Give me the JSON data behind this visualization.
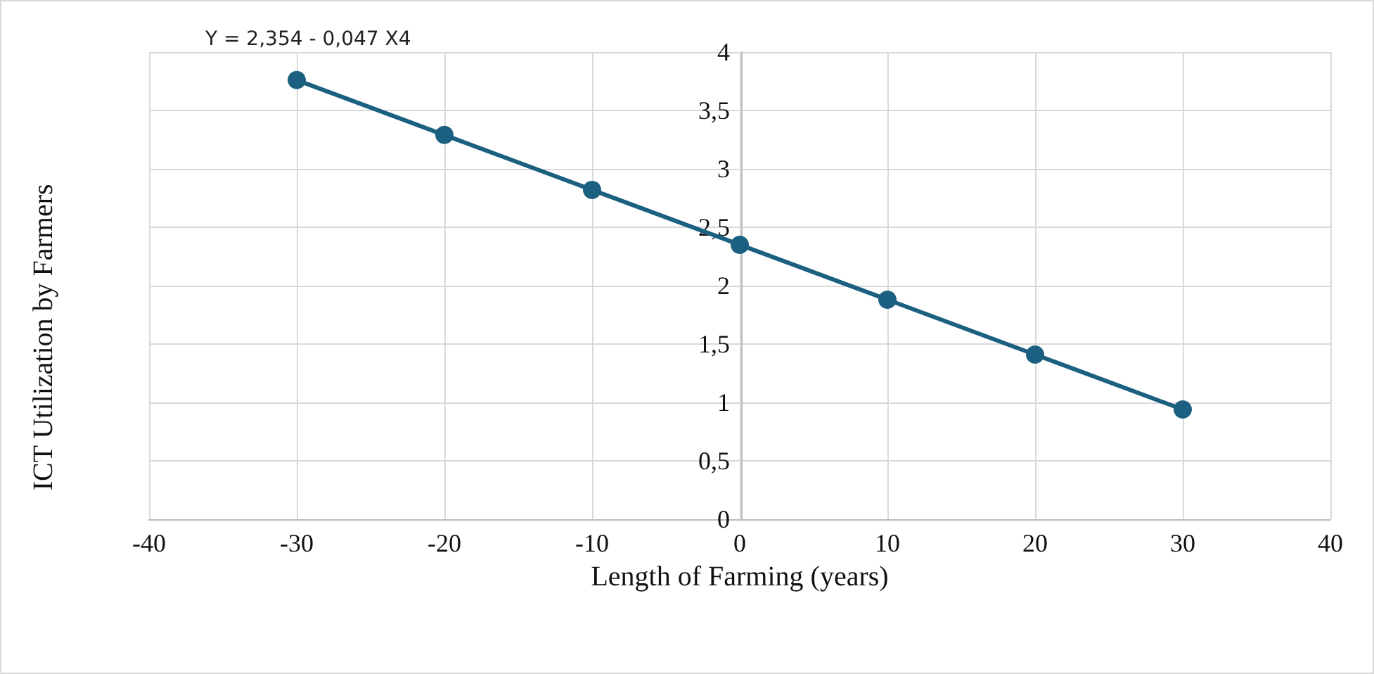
{
  "chart_data": {
    "type": "line",
    "xlabel": "Length of Farming (years)",
    "ylabel": "ICT Utilization by Farmers",
    "annotations": [
      "Y = 2,354 - 0,047 X4"
    ],
    "x": [
      -30,
      -20,
      -10,
      0,
      10,
      20,
      30
    ],
    "series": [
      {
        "color": "#1b6080",
        "values": [
          3.76,
          3.29,
          2.82,
          2.35,
          1.88,
          1.41,
          0.94
        ]
      }
    ],
    "xlim": [
      -40,
      40
    ],
    "xticks": [
      -40,
      -30,
      -20,
      -10,
      0,
      10,
      20,
      30,
      40
    ],
    "ylim": [
      0,
      4
    ],
    "yticks": [
      0,
      {
        "value": 0.5,
        "label": "0,5"
      },
      1,
      {
        "value": 1.5,
        "label": "1,5"
      },
      2,
      {
        "value": 2.5,
        "label": "2,5"
      },
      3,
      {
        "value": 3.5,
        "label": "3,5"
      },
      4
    ],
    "grid": true,
    "marker": "circle",
    "line_style": "solid"
  }
}
